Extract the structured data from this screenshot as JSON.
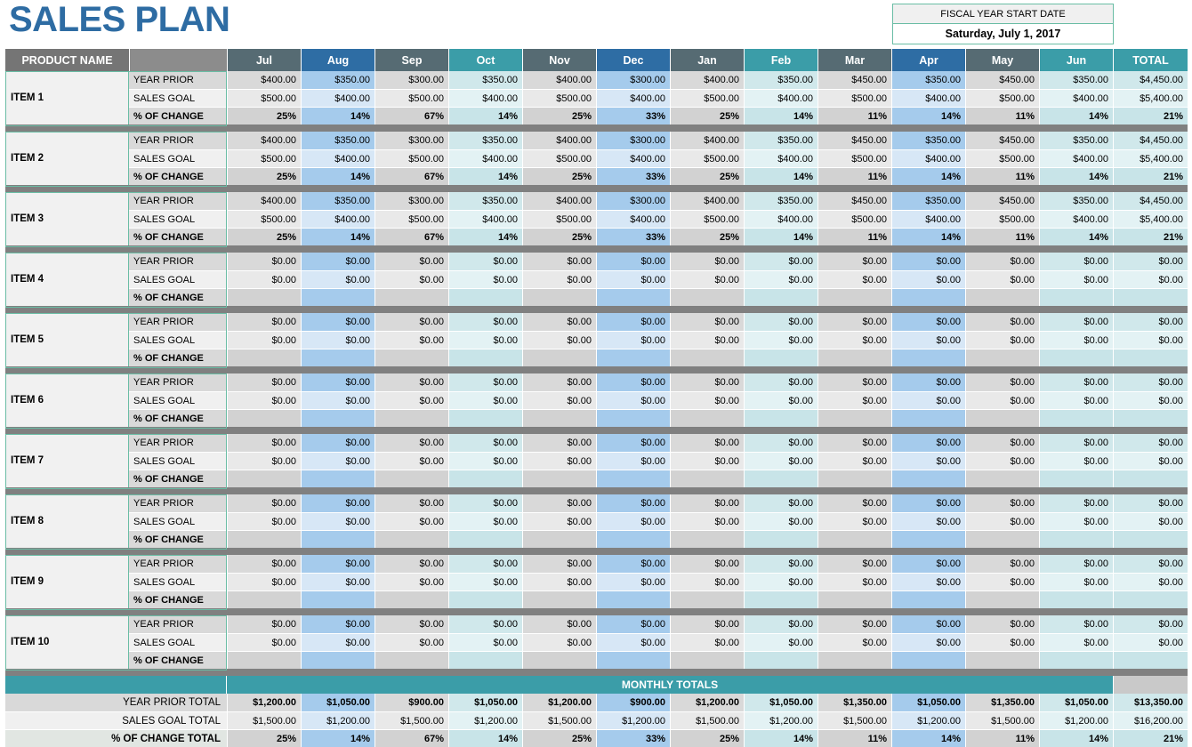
{
  "title": "SALES PLAN",
  "fiscal": {
    "label": "FISCAL YEAR START DATE",
    "value": "Saturday, July 1, 2017"
  },
  "table": {
    "product_header": "PRODUCT NAME",
    "months": [
      "Jul",
      "Aug",
      "Sep",
      "Oct",
      "Nov",
      "Dec",
      "Jan",
      "Feb",
      "Mar",
      "Apr",
      "May",
      "Jun"
    ],
    "total_header": "TOTAL",
    "row_labels": {
      "year_prior": "YEAR PRIOR",
      "sales_goal": "SALES GOAL",
      "pct_change": "% OF CHANGE"
    },
    "items": [
      {
        "name": "ITEM 1",
        "year_prior": [
          "$400.00",
          "$350.00",
          "$300.00",
          "$350.00",
          "$400.00",
          "$300.00",
          "$400.00",
          "$350.00",
          "$450.00",
          "$350.00",
          "$450.00",
          "$350.00"
        ],
        "year_prior_total": "$4,450.00",
        "sales_goal": [
          "$500.00",
          "$400.00",
          "$500.00",
          "$400.00",
          "$500.00",
          "$400.00",
          "$500.00",
          "$400.00",
          "$500.00",
          "$400.00",
          "$500.00",
          "$400.00"
        ],
        "sales_goal_total": "$5,400.00",
        "pct_change": [
          "25%",
          "14%",
          "67%",
          "14%",
          "25%",
          "33%",
          "25%",
          "14%",
          "11%",
          "14%",
          "11%",
          "14%"
        ],
        "pct_change_total": "21%"
      },
      {
        "name": "ITEM 2",
        "year_prior": [
          "$400.00",
          "$350.00",
          "$300.00",
          "$350.00",
          "$400.00",
          "$300.00",
          "$400.00",
          "$350.00",
          "$450.00",
          "$350.00",
          "$450.00",
          "$350.00"
        ],
        "year_prior_total": "$4,450.00",
        "sales_goal": [
          "$500.00",
          "$400.00",
          "$500.00",
          "$400.00",
          "$500.00",
          "$400.00",
          "$500.00",
          "$400.00",
          "$500.00",
          "$400.00",
          "$500.00",
          "$400.00"
        ],
        "sales_goal_total": "$5,400.00",
        "pct_change": [
          "25%",
          "14%",
          "67%",
          "14%",
          "25%",
          "33%",
          "25%",
          "14%",
          "11%",
          "14%",
          "11%",
          "14%"
        ],
        "pct_change_total": "21%"
      },
      {
        "name": "ITEM 3",
        "year_prior": [
          "$400.00",
          "$350.00",
          "$300.00",
          "$350.00",
          "$400.00",
          "$300.00",
          "$400.00",
          "$350.00",
          "$450.00",
          "$350.00",
          "$450.00",
          "$350.00"
        ],
        "year_prior_total": "$4,450.00",
        "sales_goal": [
          "$500.00",
          "$400.00",
          "$500.00",
          "$400.00",
          "$500.00",
          "$400.00",
          "$500.00",
          "$400.00",
          "$500.00",
          "$400.00",
          "$500.00",
          "$400.00"
        ],
        "sales_goal_total": "$5,400.00",
        "pct_change": [
          "25%",
          "14%",
          "67%",
          "14%",
          "25%",
          "33%",
          "25%",
          "14%",
          "11%",
          "14%",
          "11%",
          "14%"
        ],
        "pct_change_total": "21%"
      },
      {
        "name": "ITEM 4",
        "year_prior": [
          "$0.00",
          "$0.00",
          "$0.00",
          "$0.00",
          "$0.00",
          "$0.00",
          "$0.00",
          "$0.00",
          "$0.00",
          "$0.00",
          "$0.00",
          "$0.00"
        ],
        "year_prior_total": "$0.00",
        "sales_goal": [
          "$0.00",
          "$0.00",
          "$0.00",
          "$0.00",
          "$0.00",
          "$0.00",
          "$0.00",
          "$0.00",
          "$0.00",
          "$0.00",
          "$0.00",
          "$0.00"
        ],
        "sales_goal_total": "$0.00",
        "pct_change": [
          "",
          "",
          "",
          "",
          "",
          "",
          "",
          "",
          "",
          "",
          "",
          ""
        ],
        "pct_change_total": ""
      },
      {
        "name": "ITEM 5",
        "year_prior": [
          "$0.00",
          "$0.00",
          "$0.00",
          "$0.00",
          "$0.00",
          "$0.00",
          "$0.00",
          "$0.00",
          "$0.00",
          "$0.00",
          "$0.00",
          "$0.00"
        ],
        "year_prior_total": "$0.00",
        "sales_goal": [
          "$0.00",
          "$0.00",
          "$0.00",
          "$0.00",
          "$0.00",
          "$0.00",
          "$0.00",
          "$0.00",
          "$0.00",
          "$0.00",
          "$0.00",
          "$0.00"
        ],
        "sales_goal_total": "$0.00",
        "pct_change": [
          "",
          "",
          "",
          "",
          "",
          "",
          "",
          "",
          "",
          "",
          "",
          ""
        ],
        "pct_change_total": ""
      },
      {
        "name": "ITEM 6",
        "year_prior": [
          "$0.00",
          "$0.00",
          "$0.00",
          "$0.00",
          "$0.00",
          "$0.00",
          "$0.00",
          "$0.00",
          "$0.00",
          "$0.00",
          "$0.00",
          "$0.00"
        ],
        "year_prior_total": "$0.00",
        "sales_goal": [
          "$0.00",
          "$0.00",
          "$0.00",
          "$0.00",
          "$0.00",
          "$0.00",
          "$0.00",
          "$0.00",
          "$0.00",
          "$0.00",
          "$0.00",
          "$0.00"
        ],
        "sales_goal_total": "$0.00",
        "pct_change": [
          "",
          "",
          "",
          "",
          "",
          "",
          "",
          "",
          "",
          "",
          "",
          ""
        ],
        "pct_change_total": ""
      },
      {
        "name": "ITEM 7",
        "year_prior": [
          "$0.00",
          "$0.00",
          "$0.00",
          "$0.00",
          "$0.00",
          "$0.00",
          "$0.00",
          "$0.00",
          "$0.00",
          "$0.00",
          "$0.00",
          "$0.00"
        ],
        "year_prior_total": "$0.00",
        "sales_goal": [
          "$0.00",
          "$0.00",
          "$0.00",
          "$0.00",
          "$0.00",
          "$0.00",
          "$0.00",
          "$0.00",
          "$0.00",
          "$0.00",
          "$0.00",
          "$0.00"
        ],
        "sales_goal_total": "$0.00",
        "pct_change": [
          "",
          "",
          "",
          "",
          "",
          "",
          "",
          "",
          "",
          "",
          "",
          ""
        ],
        "pct_change_total": ""
      },
      {
        "name": "ITEM 8",
        "year_prior": [
          "$0.00",
          "$0.00",
          "$0.00",
          "$0.00",
          "$0.00",
          "$0.00",
          "$0.00",
          "$0.00",
          "$0.00",
          "$0.00",
          "$0.00",
          "$0.00"
        ],
        "year_prior_total": "$0.00",
        "sales_goal": [
          "$0.00",
          "$0.00",
          "$0.00",
          "$0.00",
          "$0.00",
          "$0.00",
          "$0.00",
          "$0.00",
          "$0.00",
          "$0.00",
          "$0.00",
          "$0.00"
        ],
        "sales_goal_total": "$0.00",
        "pct_change": [
          "",
          "",
          "",
          "",
          "",
          "",
          "",
          "",
          "",
          "",
          "",
          ""
        ],
        "pct_change_total": ""
      },
      {
        "name": "ITEM 9",
        "year_prior": [
          "$0.00",
          "$0.00",
          "$0.00",
          "$0.00",
          "$0.00",
          "$0.00",
          "$0.00",
          "$0.00",
          "$0.00",
          "$0.00",
          "$0.00",
          "$0.00"
        ],
        "year_prior_total": "$0.00",
        "sales_goal": [
          "$0.00",
          "$0.00",
          "$0.00",
          "$0.00",
          "$0.00",
          "$0.00",
          "$0.00",
          "$0.00",
          "$0.00",
          "$0.00",
          "$0.00",
          "$0.00"
        ],
        "sales_goal_total": "$0.00",
        "pct_change": [
          "",
          "",
          "",
          "",
          "",
          "",
          "",
          "",
          "",
          "",
          "",
          ""
        ],
        "pct_change_total": ""
      },
      {
        "name": "ITEM 10",
        "year_prior": [
          "$0.00",
          "$0.00",
          "$0.00",
          "$0.00",
          "$0.00",
          "$0.00",
          "$0.00",
          "$0.00",
          "$0.00",
          "$0.00",
          "$0.00",
          "$0.00"
        ],
        "year_prior_total": "$0.00",
        "sales_goal": [
          "$0.00",
          "$0.00",
          "$0.00",
          "$0.00",
          "$0.00",
          "$0.00",
          "$0.00",
          "$0.00",
          "$0.00",
          "$0.00",
          "$0.00",
          "$0.00"
        ],
        "sales_goal_total": "$0.00",
        "pct_change": [
          "",
          "",
          "",
          "",
          "",
          "",
          "",
          "",
          "",
          "",
          "",
          ""
        ],
        "pct_change_total": ""
      }
    ],
    "totals": {
      "band_label": "MONTHLY TOTALS",
      "year_prior_label": "YEAR PRIOR TOTAL",
      "year_prior": [
        "$1,200.00",
        "$1,050.00",
        "$900.00",
        "$1,050.00",
        "$1,200.00",
        "$900.00",
        "$1,200.00",
        "$1,050.00",
        "$1,350.00",
        "$1,050.00",
        "$1,350.00",
        "$1,050.00"
      ],
      "year_prior_total": "$13,350.00",
      "sales_goal_label": "SALES GOAL TOTAL",
      "sales_goal": [
        "$1,500.00",
        "$1,200.00",
        "$1,500.00",
        "$1,200.00",
        "$1,500.00",
        "$1,200.00",
        "$1,500.00",
        "$1,200.00",
        "$1,500.00",
        "$1,200.00",
        "$1,500.00",
        "$1,200.00"
      ],
      "sales_goal_total": "$16,200.00",
      "pct_change_label": "% OF CHANGE TOTAL",
      "pct_change": [
        "25%",
        "14%",
        "67%",
        "14%",
        "25%",
        "33%",
        "25%",
        "14%",
        "11%",
        "14%",
        "11%",
        "14%"
      ],
      "pct_change_total": "21%"
    }
  },
  "colors": {
    "title_blue": "#2e6ca3",
    "header_slate": "#566b73",
    "header_blue": "#2e6da4",
    "header_teal": "#3b9da8",
    "header_product_gray": "#757575",
    "accent_border_green": "#6abda5",
    "separator_gray": "#808080",
    "tint_blue": "#a5cbec",
    "tint_teal": "#d0e8eb",
    "tint_gray": "#d9d9d9"
  }
}
